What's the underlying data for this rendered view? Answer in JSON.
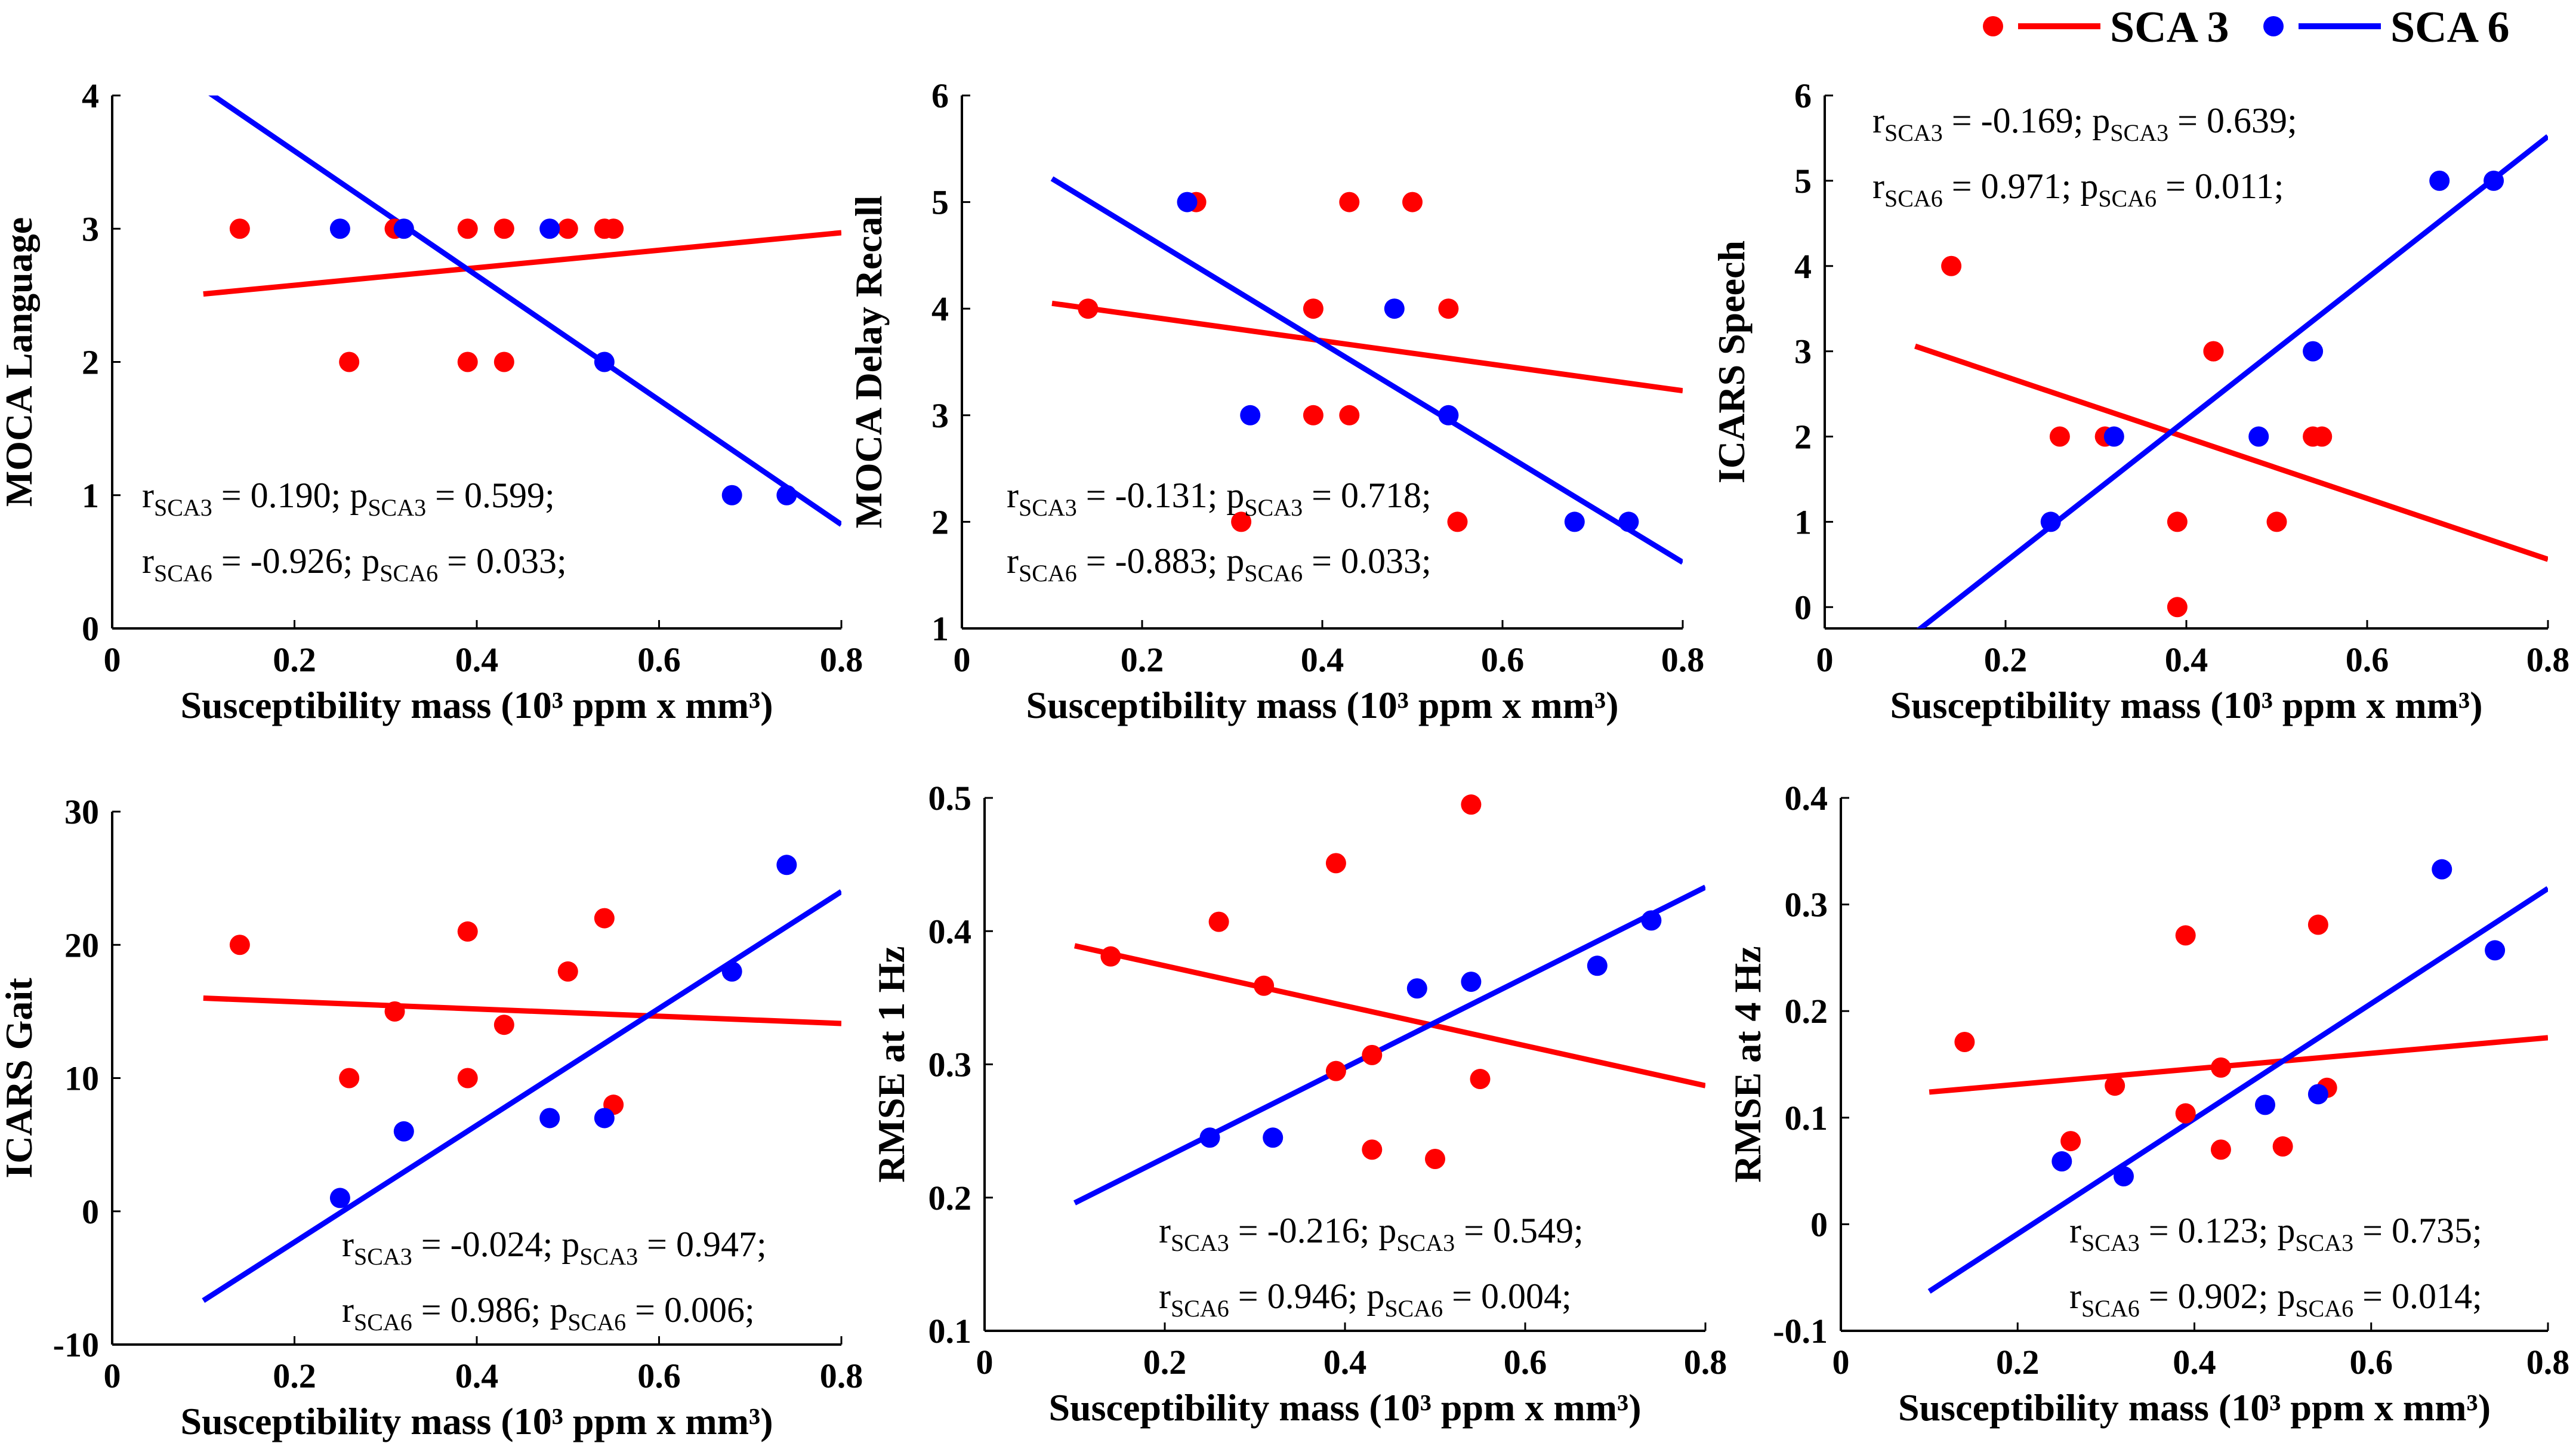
{
  "legend": [
    {
      "name": "SCA 3",
      "color": "#ff0000"
    },
    {
      "name": "SCA 6",
      "color": "#0000ff"
    }
  ],
  "chart_data": [
    {
      "type": "scatter",
      "xlabel": "Susceptibility mass (10³ ppm x mm³)",
      "ylabel": "MOCA Language",
      "xlim": [
        0,
        0.8
      ],
      "ylim": [
        0,
        4
      ],
      "xticks": [
        "0",
        "0.2",
        "0.4",
        "0.6",
        "0.8"
      ],
      "yticks": [
        "0",
        "1",
        "2",
        "3",
        "4"
      ],
      "series": [
        {
          "name": "SCA 3",
          "color": "#ff0000",
          "points": [
            [
              0.14,
              3
            ],
            [
              0.26,
              2
            ],
            [
              0.31,
              3
            ],
            [
              0.39,
              3
            ],
            [
              0.39,
              2
            ],
            [
              0.43,
              3
            ],
            [
              0.43,
              2
            ],
            [
              0.5,
              3
            ],
            [
              0.54,
              3
            ],
            [
              0.55,
              3
            ]
          ],
          "fit": [
            [
              0.1,
              2.51
            ],
            [
              0.8,
              2.97
            ]
          ]
        },
        {
          "name": "SCA 6",
          "color": "#0000ff",
          "points": [
            [
              0.25,
              3
            ],
            [
              0.32,
              3
            ],
            [
              0.48,
              3
            ],
            [
              0.54,
              2
            ],
            [
              0.68,
              1
            ],
            [
              0.74,
              1
            ]
          ],
          "fit": [
            [
              0.1,
              4.05
            ],
            [
              0.8,
              0.78
            ]
          ]
        }
      ],
      "annotations": [
        {
          "r_label": "r",
          "r_sub": "SCA3",
          "r_value": " = 0.190; ",
          "p_label": "p",
          "p_sub": "SCA3",
          "p_value": " = 0.599;"
        },
        {
          "r_label": "r",
          "r_sub": "SCA6",
          "r_value": " = -0.926; ",
          "p_label": "p",
          "p_sub": "SCA6",
          "p_value": " = 0.033;"
        }
      ]
    },
    {
      "type": "scatter",
      "xlabel": "Susceptibility mass (10³ ppm x mm³)",
      "ylabel": "MOCA Delay Recall",
      "xlim": [
        0,
        0.8
      ],
      "ylim": [
        1,
        6
      ],
      "xticks": [
        "0",
        "0.2",
        "0.4",
        "0.6",
        "0.8"
      ],
      "yticks": [
        "1",
        "2",
        "3",
        "4",
        "5",
        "6"
      ],
      "series": [
        {
          "name": "SCA 3",
          "color": "#ff0000",
          "points": [
            [
              0.14,
              4
            ],
            [
              0.26,
              5
            ],
            [
              0.31,
              2
            ],
            [
              0.39,
              4
            ],
            [
              0.39,
              3
            ],
            [
              0.43,
              5
            ],
            [
              0.43,
              3
            ],
            [
              0.5,
              5
            ],
            [
              0.54,
              4
            ],
            [
              0.55,
              2
            ]
          ],
          "fit": [
            [
              0.1,
              4.05
            ],
            [
              0.8,
              3.23
            ]
          ]
        },
        {
          "name": "SCA 6",
          "color": "#0000ff",
          "points": [
            [
              0.25,
              5
            ],
            [
              0.32,
              3
            ],
            [
              0.48,
              4
            ],
            [
              0.54,
              3
            ],
            [
              0.68,
              2
            ],
            [
              0.74,
              2
            ]
          ],
          "fit": [
            [
              0.1,
              5.22
            ],
            [
              0.8,
              1.62
            ]
          ]
        }
      ],
      "annotations": [
        {
          "r_label": "r",
          "r_sub": "SCA3",
          "r_value": " = -0.131; ",
          "p_label": "p",
          "p_sub": "SCA3",
          "p_value": " = 0.718;"
        },
        {
          "r_label": "r",
          "r_sub": "SCA6",
          "r_value": " = -0.883; ",
          "p_label": "p",
          "p_sub": "SCA6",
          "p_value": " = 0.033;"
        }
      ]
    },
    {
      "type": "scatter",
      "xlabel": "Susceptibility mass (10³ ppm x mm³)",
      "ylabel": "ICARS Speech",
      "xlim": [
        0,
        0.8
      ],
      "ylim": [
        -0.25,
        6
      ],
      "xticks": [
        "0",
        "0.2",
        "0.4",
        "0.6",
        "0.8"
      ],
      "yticks": [
        "0",
        "1",
        "2",
        "3",
        "4",
        "5",
        "6"
      ],
      "series": [
        {
          "name": "SCA 3",
          "color": "#ff0000",
          "points": [
            [
              0.14,
              4
            ],
            [
              0.26,
              2
            ],
            [
              0.31,
              2
            ],
            [
              0.39,
              1
            ],
            [
              0.39,
              0
            ],
            [
              0.43,
              3
            ],
            [
              0.43,
              3
            ],
            [
              0.5,
              1
            ],
            [
              0.54,
              2
            ],
            [
              0.55,
              2
            ]
          ],
          "fit": [
            [
              0.1,
              3.06
            ],
            [
              0.8,
              0.56
            ]
          ]
        },
        {
          "name": "SCA 6",
          "color": "#0000ff",
          "points": [
            [
              0.25,
              1
            ],
            [
              0.32,
              2
            ],
            [
              0.48,
              2
            ],
            [
              0.54,
              3
            ],
            [
              0.68,
              5
            ],
            [
              0.74,
              5
            ]
          ],
          "fit": [
            [
              0.1,
              -0.3
            ],
            [
              0.8,
              5.52
            ]
          ]
        }
      ],
      "annotations": [
        {
          "r_label": "r",
          "r_sub": "SCA3",
          "r_value": " = -0.169; ",
          "p_label": "p",
          "p_sub": "SCA3",
          "p_value": " = 0.639;"
        },
        {
          "r_label": "r",
          "r_sub": "SCA6",
          "r_value": " = 0.971; ",
          "p_label": "p",
          "p_sub": "SCA6",
          "p_value": " = 0.011;"
        }
      ]
    },
    {
      "type": "scatter",
      "xlabel": "Susceptibility mass (10³ ppm x mm³)",
      "ylabel": "ICARS Gait",
      "xlim": [
        0,
        0.8
      ],
      "ylim": [
        -10,
        30
      ],
      "xticks": [
        "0",
        "0.2",
        "0.4",
        "0.6",
        "0.8"
      ],
      "yticks": [
        "-10",
        "0",
        "10",
        "20",
        "30"
      ],
      "series": [
        {
          "name": "SCA 3",
          "color": "#ff0000",
          "points": [
            [
              0.14,
              20
            ],
            [
              0.26,
              10
            ],
            [
              0.31,
              15
            ],
            [
              0.39,
              21
            ],
            [
              0.39,
              10
            ],
            [
              0.43,
              14
            ],
            [
              0.5,
              18
            ],
            [
              0.54,
              22
            ],
            [
              0.55,
              8
            ]
          ],
          "fit": [
            [
              0.1,
              16.0
            ],
            [
              0.8,
              14.1
            ]
          ]
        },
        {
          "name": "SCA 6",
          "color": "#0000ff",
          "points": [
            [
              0.25,
              1
            ],
            [
              0.32,
              6
            ],
            [
              0.48,
              7
            ],
            [
              0.54,
              7
            ],
            [
              0.68,
              18
            ],
            [
              0.74,
              26
            ]
          ],
          "fit": [
            [
              0.1,
              -6.7
            ],
            [
              0.8,
              24.0
            ]
          ]
        }
      ],
      "annotations": [
        {
          "r_label": "r",
          "r_sub": "SCA3",
          "r_value": " = -0.024; ",
          "p_label": "p",
          "p_sub": "SCA3",
          "p_value": " = 0.947;"
        },
        {
          "r_label": "r",
          "r_sub": "SCA6",
          "r_value": " = 0.986; ",
          "p_label": "p",
          "p_sub": "SCA6",
          "p_value": " = 0.006;"
        }
      ]
    },
    {
      "type": "scatter",
      "xlabel": "Susceptibility mass (10³ ppm x mm³)",
      "ylabel": "RMSE at 1 Hz",
      "xlim": [
        0,
        0.8
      ],
      "ylim": [
        0.1,
        0.5
      ],
      "xticks": [
        "0",
        "0.2",
        "0.4",
        "0.6",
        "0.8"
      ],
      "yticks": [
        "0.1",
        "0.2",
        "0.3",
        "0.4",
        "0.5"
      ],
      "series": [
        {
          "name": "SCA 3",
          "color": "#ff0000",
          "points": [
            [
              0.14,
              0.381
            ],
            [
              0.26,
              0.407
            ],
            [
              0.31,
              0.359
            ],
            [
              0.39,
              0.451
            ],
            [
              0.39,
              0.295
            ],
            [
              0.43,
              0.307
            ],
            [
              0.43,
              0.236
            ],
            [
              0.5,
              0.229
            ],
            [
              0.54,
              0.495
            ],
            [
              0.55,
              0.289
            ]
          ],
          "fit": [
            [
              0.1,
              0.389
            ],
            [
              0.8,
              0.284
            ]
          ]
        },
        {
          "name": "SCA 6",
          "color": "#0000ff",
          "points": [
            [
              0.25,
              0.245
            ],
            [
              0.32,
              0.245
            ],
            [
              0.48,
              0.357
            ],
            [
              0.54,
              0.362
            ],
            [
              0.68,
              0.374
            ],
            [
              0.74,
              0.408
            ]
          ],
          "fit": [
            [
              0.1,
              0.196
            ],
            [
              0.8,
              0.433
            ]
          ]
        }
      ],
      "annotations": [
        {
          "r_label": "r",
          "r_sub": "SCA3",
          "r_value": " = -0.216; ",
          "p_label": "p",
          "p_sub": "SCA3",
          "p_value": " = 0.549;"
        },
        {
          "r_label": "r",
          "r_sub": "SCA6",
          "r_value": " = 0.946; ",
          "p_label": "p",
          "p_sub": "SCA6",
          "p_value": " = 0.004;"
        }
      ]
    },
    {
      "type": "scatter",
      "xlabel": "Susceptibility mass (10³ ppm x mm³)",
      "ylabel": "RMSE at 4 Hz",
      "xlim": [
        0,
        0.8
      ],
      "ylim": [
        -0.1,
        0.4
      ],
      "xticks": [
        "0",
        "0.2",
        "0.4",
        "0.6",
        "0.8"
      ],
      "yticks": [
        "-0.1",
        "0",
        "0.1",
        "0.2",
        "0.3",
        "0.4"
      ],
      "series": [
        {
          "name": "SCA 3",
          "color": "#ff0000",
          "points": [
            [
              0.14,
              0.171
            ],
            [
              0.26,
              0.078
            ],
            [
              0.31,
              0.13
            ],
            [
              0.39,
              0.271
            ],
            [
              0.39,
              0.104
            ],
            [
              0.43,
              0.147
            ],
            [
              0.43,
              0.07
            ],
            [
              0.5,
              0.073
            ],
            [
              0.54,
              0.281
            ],
            [
              0.55,
              0.128
            ]
          ],
          "fit": [
            [
              0.1,
              0.124
            ],
            [
              0.8,
              0.175
            ]
          ]
        },
        {
          "name": "SCA 6",
          "color": "#0000ff",
          "points": [
            [
              0.25,
              0.059
            ],
            [
              0.32,
              0.045
            ],
            [
              0.48,
              0.112
            ],
            [
              0.54,
              0.122
            ],
            [
              0.68,
              0.333
            ],
            [
              0.74,
              0.257
            ]
          ],
          "fit": [
            [
              0.1,
              -0.063
            ],
            [
              0.8,
              0.315
            ]
          ]
        }
      ],
      "annotations": [
        {
          "r_label": "r",
          "r_sub": "SCA3",
          "r_value": " = 0.123; ",
          "p_label": "p",
          "p_sub": "SCA3",
          "p_value": " = 0.735;"
        },
        {
          "r_label": "r",
          "r_sub": "SCA6",
          "r_value": " = 0.902; ",
          "p_label": "p",
          "p_sub": "SCA6",
          "p_value": " = 0.014;"
        }
      ]
    }
  ]
}
